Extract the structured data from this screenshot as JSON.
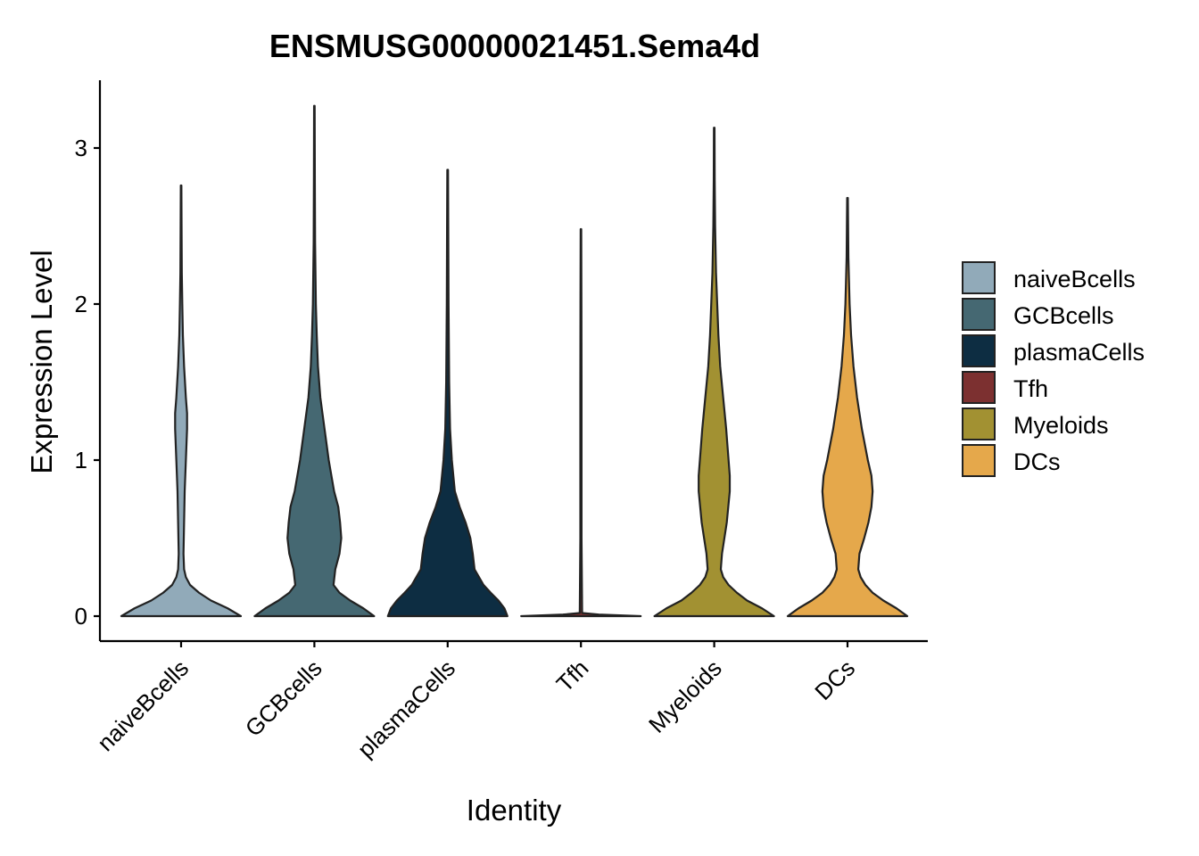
{
  "chart_data": {
    "type": "violin",
    "title": "ENSMUSG00000021451.Sema4d",
    "xlabel": "Identity",
    "ylabel": "Expression Level",
    "ylim": [
      -0.16,
      3.44
    ],
    "yticks": [
      0,
      1,
      2,
      3
    ],
    "categories": [
      "naiveBcells",
      "GCBcells",
      "plasmaCells",
      "Tfh",
      "Myeloids",
      "DCs"
    ],
    "legend_position": "right",
    "series": [
      {
        "name": "naiveBcells",
        "color": "#91aab9",
        "max": 2.76,
        "density": [
          [
            0,
            1
          ],
          [
            0.05,
            0.78
          ],
          [
            0.1,
            0.5
          ],
          [
            0.15,
            0.3
          ],
          [
            0.2,
            0.15
          ],
          [
            0.25,
            0.08
          ],
          [
            0.3,
            0.05
          ],
          [
            0.4,
            0.04
          ],
          [
            0.6,
            0.05
          ],
          [
            0.8,
            0.06
          ],
          [
            1.0,
            0.08
          ],
          [
            1.2,
            0.1
          ],
          [
            1.3,
            0.1
          ],
          [
            1.4,
            0.08
          ],
          [
            1.6,
            0.05
          ],
          [
            1.8,
            0.03
          ],
          [
            2.0,
            0.02
          ],
          [
            2.2,
            0.012
          ],
          [
            2.5,
            0.008
          ],
          [
            2.76,
            0.005
          ]
        ]
      },
      {
        "name": "GCBcells",
        "color": "#456872",
        "max": 3.27,
        "density": [
          [
            0,
            1
          ],
          [
            0.05,
            0.82
          ],
          [
            0.1,
            0.6
          ],
          [
            0.15,
            0.42
          ],
          [
            0.2,
            0.32
          ],
          [
            0.3,
            0.35
          ],
          [
            0.4,
            0.42
          ],
          [
            0.5,
            0.45
          ],
          [
            0.6,
            0.43
          ],
          [
            0.7,
            0.4
          ],
          [
            0.8,
            0.33
          ],
          [
            1.0,
            0.24
          ],
          [
            1.2,
            0.17
          ],
          [
            1.4,
            0.1
          ],
          [
            1.6,
            0.06
          ],
          [
            1.8,
            0.04
          ],
          [
            2.0,
            0.025
          ],
          [
            2.4,
            0.012
          ],
          [
            2.8,
            0.008
          ],
          [
            3.27,
            0.005
          ]
        ]
      },
      {
        "name": "plasmaCells",
        "color": "#0d2d42",
        "max": 2.86,
        "density": [
          [
            0,
            1
          ],
          [
            0.05,
            0.95
          ],
          [
            0.1,
            0.85
          ],
          [
            0.15,
            0.72
          ],
          [
            0.2,
            0.6
          ],
          [
            0.3,
            0.45
          ],
          [
            0.4,
            0.42
          ],
          [
            0.5,
            0.38
          ],
          [
            0.6,
            0.3
          ],
          [
            0.7,
            0.2
          ],
          [
            0.8,
            0.12
          ],
          [
            1.0,
            0.07
          ],
          [
            1.2,
            0.04
          ],
          [
            1.5,
            0.025
          ],
          [
            2.0,
            0.015
          ],
          [
            2.5,
            0.01
          ],
          [
            2.86,
            0.006
          ]
        ]
      },
      {
        "name": "Tfh",
        "color": "#7c3030",
        "max": 2.48,
        "density": [
          [
            0,
            1
          ],
          [
            0.01,
            0.3
          ],
          [
            0.02,
            0.02
          ],
          [
            0.5,
            0.01
          ],
          [
            1.0,
            0.01
          ],
          [
            1.5,
            0.01
          ],
          [
            2.0,
            0.008
          ],
          [
            2.48,
            0.005
          ]
        ]
      },
      {
        "name": "Myeloids",
        "color": "#a29132",
        "max": 3.13,
        "density": [
          [
            0,
            1
          ],
          [
            0.05,
            0.8
          ],
          [
            0.1,
            0.55
          ],
          [
            0.15,
            0.38
          ],
          [
            0.2,
            0.24
          ],
          [
            0.25,
            0.15
          ],
          [
            0.3,
            0.11
          ],
          [
            0.4,
            0.13
          ],
          [
            0.6,
            0.21
          ],
          [
            0.8,
            0.26
          ],
          [
            0.9,
            0.26
          ],
          [
            1.0,
            0.24
          ],
          [
            1.2,
            0.2
          ],
          [
            1.4,
            0.15
          ],
          [
            1.6,
            0.1
          ],
          [
            1.8,
            0.07
          ],
          [
            2.0,
            0.05
          ],
          [
            2.2,
            0.03
          ],
          [
            2.5,
            0.015
          ],
          [
            2.8,
            0.008
          ],
          [
            3.13,
            0.005
          ]
        ]
      },
      {
        "name": "DCs",
        "color": "#e5a84b",
        "max": 2.68,
        "density": [
          [
            0,
            1
          ],
          [
            0.05,
            0.82
          ],
          [
            0.1,
            0.6
          ],
          [
            0.15,
            0.42
          ],
          [
            0.2,
            0.3
          ],
          [
            0.25,
            0.22
          ],
          [
            0.3,
            0.18
          ],
          [
            0.4,
            0.2
          ],
          [
            0.5,
            0.28
          ],
          [
            0.6,
            0.35
          ],
          [
            0.7,
            0.4
          ],
          [
            0.8,
            0.42
          ],
          [
            0.9,
            0.4
          ],
          [
            1.0,
            0.34
          ],
          [
            1.2,
            0.24
          ],
          [
            1.4,
            0.16
          ],
          [
            1.6,
            0.1
          ],
          [
            1.8,
            0.06
          ],
          [
            2.0,
            0.035
          ],
          [
            2.3,
            0.015
          ],
          [
            2.68,
            0.006
          ]
        ]
      }
    ]
  }
}
